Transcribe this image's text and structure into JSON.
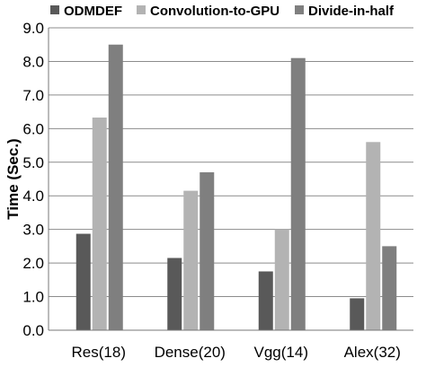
{
  "chart_data": {
    "type": "bar",
    "categories": [
      "Res(18)",
      "Dense(20)",
      "Vgg(14)",
      "Alex(32)"
    ],
    "series": [
      {
        "name": "ODMDEF",
        "values": [
          2.87,
          2.15,
          1.75,
          0.95
        ],
        "color": "#595959"
      },
      {
        "name": "Convolution-to-GPU",
        "values": [
          6.33,
          4.15,
          3.0,
          5.6
        ],
        "color": "#b3b3b3"
      },
      {
        "name": "Divide-in-half",
        "values": [
          8.5,
          4.7,
          8.1,
          2.5
        ],
        "color": "#7f7f7f"
      }
    ],
    "ylabel": "Time (Sec.)",
    "ylim": [
      0,
      9
    ],
    "yticks": [
      "0.0",
      "1.0",
      "2.0",
      "3.0",
      "4.0",
      "5.0",
      "6.0",
      "7.0",
      "8.0",
      "9.0"
    ],
    "grid": true,
    "legend_position": "top"
  }
}
